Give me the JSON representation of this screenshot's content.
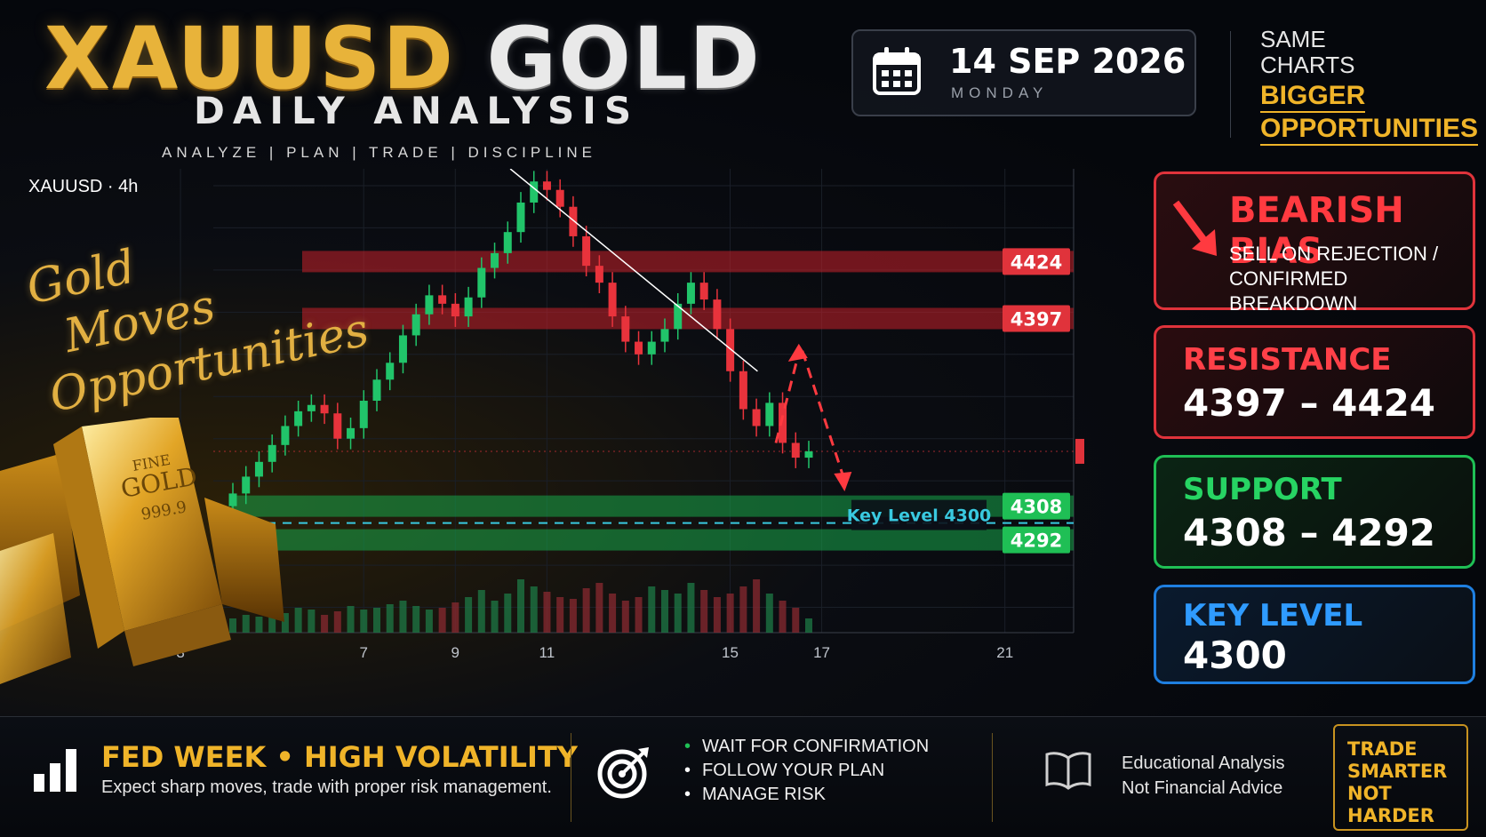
{
  "header": {
    "title_part1": "XAUUSD",
    "title_part2": "GOLD",
    "subtitle": "DAILY ANALYSIS",
    "tagline": "ANALYZE | PLAN | TRADE | DISCIPLINE",
    "date": "14 SEP 2026",
    "weekday": "MONDAY",
    "slogan_line1": "SAME",
    "slogan_line2": "CHARTS",
    "slogan_line3": "BIGGER",
    "slogan_line4": "OPPORTUNITIES"
  },
  "chart_label": "XAUUSD · 4h",
  "script_text": [
    "Gold",
    "Moves",
    "Opportunities"
  ],
  "cards": {
    "bias_title": "BEARISH BIAS",
    "bias_text": "SELL ON REJECTION / CONFIRMED BREAKDOWN",
    "resistance_title": "RESISTANCE",
    "resistance_value": "4397 – 4424",
    "support_title": "SUPPORT",
    "support_value": "4308 – 4292",
    "key_title": "KEY LEVEL",
    "key_value": "4300"
  },
  "footer": {
    "fed": "FED WEEK • HIGH VOLATILITY",
    "fed_sub": "Expect sharp moves, trade with proper risk management.",
    "checklist": [
      "WAIT FOR CONFIRMATION",
      "FOLLOW YOUR PLAN",
      "MANAGE RISK"
    ],
    "edu_line1": "Educational Analysis",
    "edu_line2": "Not Financial Advice",
    "trade_line1": "TRADE",
    "trade_line2": "SMARTER",
    "trade_line3": "NOT HARDER"
  },
  "colors": {
    "gold": "#f0b429",
    "bearish": "#e0333b",
    "bullish": "#1fbf55",
    "key": "#1f7fe0"
  },
  "chart_data": {
    "type": "candlestick",
    "ylim": [
      4248,
      4468
    ],
    "xlim": [
      1,
      22.5
    ],
    "x_ticks": [
      3,
      7,
      9,
      11,
      15,
      17,
      21
    ],
    "y_ticks": [
      4460,
      4440,
      4420,
      4400,
      4380,
      4360,
      4340,
      4320,
      4280,
      4260
    ],
    "current_price": 4334,
    "resistance_zone": [
      4397,
      4424
    ],
    "support_zone": [
      4292,
      4308
    ],
    "key_level": 4300,
    "key_level_label": "Key Level 4300",
    "trendline": [
      [
        10.2,
        4468
      ],
      [
        15.6,
        4372
      ]
    ],
    "projection": [
      [
        16.0,
        4338
      ],
      [
        16.5,
        4385
      ],
      [
        17.5,
        4315
      ]
    ],
    "closes": [
      4314,
      4322,
      4329,
      4337,
      4346,
      4353,
      4356,
      4352,
      4340,
      4345,
      4358,
      4368,
      4376,
      4389,
      4399,
      4408,
      4404,
      4398,
      4407,
      4421,
      4428,
      4438,
      4452,
      4462,
      4458,
      4450,
      4436,
      4422,
      4414,
      4398,
      4386,
      4380,
      4386,
      4392,
      4404,
      4414,
      4406,
      4392,
      4372,
      4354,
      4346,
      4357,
      4338,
      4331,
      4334
    ],
    "volumes": [
      8,
      10,
      9,
      12,
      11,
      14,
      13,
      10,
      12,
      15,
      13,
      14,
      16,
      18,
      15,
      13,
      14,
      17,
      20,
      24,
      18,
      22,
      30,
      26,
      23,
      20,
      19,
      25,
      28,
      22,
      18,
      20,
      26,
      24,
      22,
      28,
      24,
      20,
      22,
      26,
      30,
      22,
      18,
      14,
      8
    ]
  }
}
